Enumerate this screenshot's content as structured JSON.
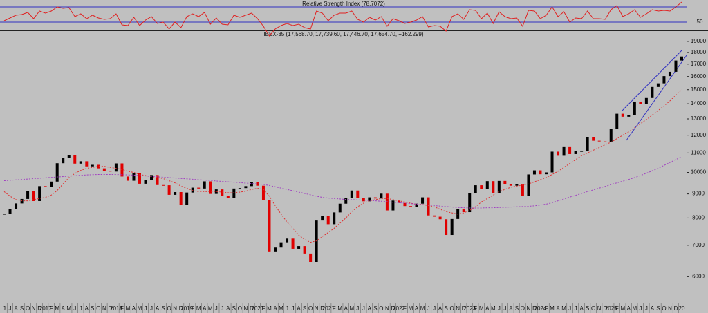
{
  "chart_data": [
    {
      "type": "line",
      "title": "Relative Strength Index (78.7072)",
      "color": "#e02020",
      "ylim": [
        40,
        80
      ],
      "yticks": [
        50
      ],
      "reference_lines": [
        72,
        50
      ],
      "values": [
        52,
        56,
        60,
        61,
        64,
        55,
        66,
        63,
        66,
        72,
        70,
        71,
        58,
        62,
        55,
        60,
        56,
        54,
        55,
        62,
        46,
        45,
        57,
        45,
        53,
        58,
        48,
        50,
        40,
        50,
        42,
        58,
        62,
        58,
        64,
        47,
        56,
        47,
        46,
        60,
        57,
        60,
        63,
        55,
        44,
        30,
        40,
        45,
        48,
        45,
        47,
        42,
        40,
        66,
        63,
        52,
        60,
        63,
        63,
        66,
        54,
        50,
        57,
        53,
        58,
        44,
        55,
        52,
        48,
        50,
        53,
        58,
        43,
        45,
        44,
        37,
        58,
        62,
        54,
        68,
        67,
        55,
        63,
        48,
        65,
        58,
        55,
        56,
        44,
        67,
        66,
        55,
        60,
        72,
        58,
        65,
        50,
        56,
        55,
        66,
        55,
        55,
        54,
        68,
        74,
        58,
        62,
        68,
        57,
        62,
        68,
        66,
        67,
        66,
        72,
        79
      ]
    },
    {
      "type": "candle",
      "title": "IBEX-35 (17,568.70, 17,739.60, 17,446.70, 17,654.70, +162.299)",
      "log_scale": true,
      "ylim": [
        5300,
        19850
      ],
      "yticks": [
        6000,
        7000,
        8000,
        9000,
        10000,
        11000,
        12000,
        13000,
        14000,
        15000,
        16000,
        17000,
        18000,
        19000
      ],
      "categories": [
        "J",
        "J",
        "A",
        "S",
        "O",
        "N",
        "D",
        "2017",
        "F",
        "M",
        "A",
        "M",
        "J",
        "J",
        "A",
        "S",
        "O",
        "N",
        "D",
        "2018",
        "F",
        "M",
        "A",
        "M",
        "J",
        "J",
        "A",
        "S",
        "O",
        "N",
        "D",
        "2019",
        "F",
        "M",
        "A",
        "M",
        "J",
        "J",
        "A",
        "S",
        "O",
        "N",
        "D",
        "2020",
        "F",
        "M",
        "A",
        "M",
        "J",
        "J",
        "A",
        "S",
        "O",
        "N",
        "D",
        "2021",
        "F",
        "M",
        "A",
        "M",
        "J",
        "J",
        "A",
        "S",
        "O",
        "N",
        "D",
        "2022",
        "F",
        "M",
        "A",
        "M",
        "J",
        "J",
        "A",
        "S",
        "O",
        "N",
        "D",
        "2023",
        "F",
        "M",
        "A",
        "M",
        "J",
        "J",
        "A",
        "S",
        "O",
        "N",
        "D",
        "2024",
        "F",
        "M",
        "A",
        "M",
        "J",
        "J",
        "A",
        "S",
        "O",
        "N",
        "D",
        "2025",
        "F",
        "M",
        "A",
        "M",
        "J",
        "J",
        "A",
        "S",
        "O",
        "N",
        "D",
        "20"
      ],
      "series": [
        {
          "color": "#000000",
          "down_color": "#e00000",
          "values": [
            8160,
            8370,
            8590,
            8780,
            9140,
            8690,
            9350,
            9320,
            9560,
            10460,
            10720,
            10880,
            10440,
            10560,
            10300,
            10380,
            10200,
            10080,
            10040,
            10450,
            9800,
            9600,
            9980,
            9460,
            9620,
            9870,
            9400,
            9390,
            8960,
            9080,
            8540,
            9060,
            9280,
            9240,
            9570,
            9000,
            9200,
            8900,
            8810,
            9240,
            9260,
            9350,
            9550,
            9370,
            8720,
            6790,
            6920,
            7100,
            7230,
            6880,
            6970,
            6720,
            6450,
            7900,
            8070,
            7760,
            8220,
            8580,
            8820,
            9150,
            8820,
            8680,
            8850,
            8800,
            9010,
            8300,
            8710,
            8610,
            8480,
            8450,
            8580,
            8850,
            8100,
            8050,
            7950,
            7360,
            7960,
            8360,
            8230,
            9030,
            9390,
            9230,
            9580,
            9050,
            9590,
            9430,
            9370,
            9430,
            8920,
            9900,
            10100,
            9910,
            10000,
            11070,
            10850,
            11320,
            10940,
            11090,
            11100,
            11880,
            11680,
            11640,
            11600,
            12370,
            13330,
            13140,
            13250,
            14150,
            13990,
            14400,
            15200,
            15470,
            16030,
            16370,
            17300,
            17650
          ]
        },
        {
          "type": "line",
          "color": "#e03030",
          "values": [
            9100,
            8900,
            8750,
            8700,
            8700,
            8750,
            8800,
            8850,
            8950,
            9150,
            9450,
            9750,
            9950,
            10100,
            10200,
            10250,
            10300,
            10300,
            10250,
            10200,
            10150,
            10050,
            10000,
            9900,
            9850,
            9800,
            9750,
            9700,
            9600,
            9500,
            9350,
            9250,
            9150,
            9100,
            9100,
            9100,
            9100,
            9080,
            9050,
            9050,
            9080,
            9120,
            9200,
            9250,
            9200,
            8900,
            8500,
            8150,
            7850,
            7600,
            7350,
            7200,
            7100,
            7150,
            7300,
            7450,
            7600,
            7800,
            8000,
            8250,
            8450,
            8600,
            8700,
            8750,
            8800,
            8800,
            8750,
            8700,
            8650,
            8600,
            8550,
            8550,
            8500,
            8450,
            8350,
            8250,
            8200,
            8150,
            8200,
            8300,
            8450,
            8650,
            8800,
            8950,
            9100,
            9200,
            9300,
            9350,
            9400,
            9450,
            9550,
            9650,
            9750,
            9900,
            10050,
            10250,
            10450,
            10650,
            10850,
            11000,
            11150,
            11300,
            11450,
            11600,
            11800,
            12000,
            12200,
            12450,
            12700,
            12950,
            13250,
            13550,
            13850,
            14200,
            14600,
            15000
          ]
        },
        {
          "type": "line",
          "color": "#a040c0",
          "values": [
            9600,
            9620,
            9640,
            9660,
            9680,
            9700,
            9720,
            9740,
            9760,
            9780,
            9800,
            9820,
            9840,
            9860,
            9880,
            9890,
            9900,
            9900,
            9900,
            9900,
            9890,
            9880,
            9870,
            9850,
            9830,
            9810,
            9790,
            9770,
            9750,
            9730,
            9710,
            9690,
            9670,
            9650,
            9630,
            9610,
            9590,
            9570,
            9550,
            9530,
            9510,
            9490,
            9470,
            9450,
            9430,
            9380,
            9320,
            9260,
            9200,
            9140,
            9080,
            9020,
            8960,
            8900,
            8850,
            8820,
            8800,
            8780,
            8760,
            8750,
            8740,
            8730,
            8720,
            8700,
            8680,
            8660,
            8640,
            8620,
            8600,
            8580,
            8560,
            8540,
            8520,
            8500,
            8480,
            8460,
            8440,
            8420,
            8410,
            8400,
            8400,
            8400,
            8410,
            8410,
            8420,
            8430,
            8440,
            8450,
            8460,
            8470,
            8490,
            8520,
            8560,
            8620,
            8700,
            8780,
            8860,
            8940,
            9020,
            9100,
            9180,
            9260,
            9340,
            9420,
            9500,
            9580,
            9660,
            9750,
            9850,
            9960,
            10080,
            10200,
            10350,
            10500,
            10650,
            10800
          ]
        }
      ]
    }
  ]
}
